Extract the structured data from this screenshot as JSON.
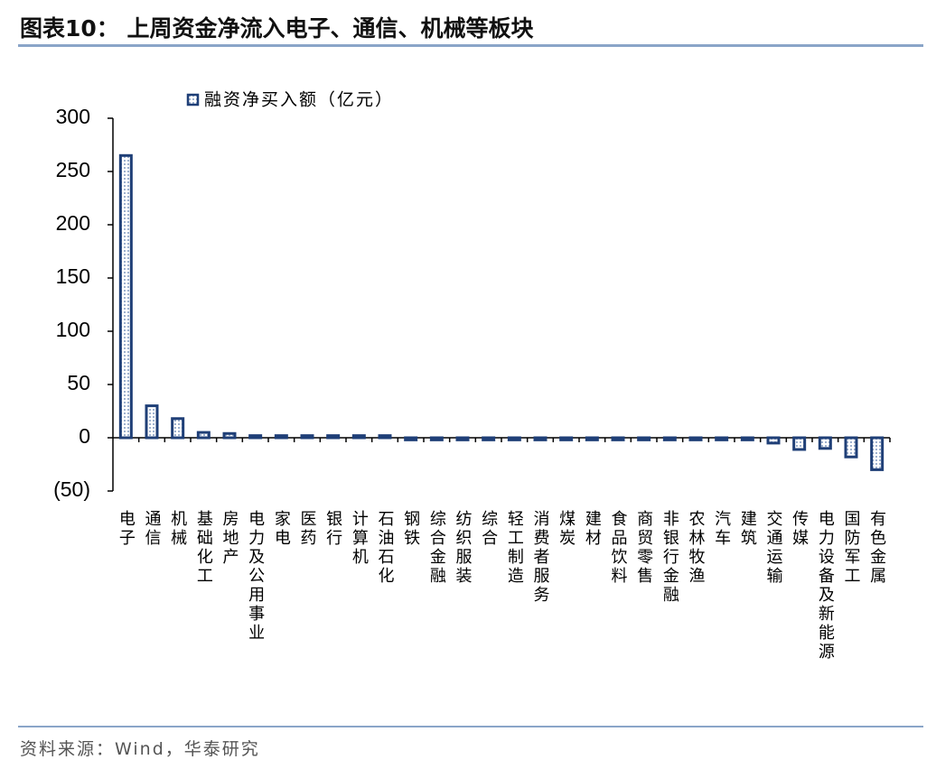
{
  "header": {
    "title": "图表10： 上周资金净流入电子、通信、机械等板块"
  },
  "chart_data": {
    "type": "bar",
    "categories": [
      "电子",
      "通信",
      "机械",
      "基础化工",
      "房地产",
      "电力及公用事业",
      "家电",
      "医药",
      "银行",
      "计算机",
      "石油石化",
      "钢铁",
      "综合金融",
      "纺织服装",
      "综合",
      "轻工制造",
      "消费者服务",
      "煤炭",
      "建材",
      "食品饮料",
      "商贸零售",
      "非银行金融",
      "农林牧渔",
      "汽车",
      "建筑",
      "交通运输",
      "传媒",
      "电力设备及新能源",
      "国防军工",
      "有色金属"
    ],
    "series": [
      {
        "name": "融资净买入额（亿元）",
        "color": "#1f3f77",
        "values": [
          265,
          30,
          18,
          5,
          4,
          2,
          2,
          2,
          2,
          2,
          2,
          -2,
          -2,
          -2,
          -2,
          -2,
          -2,
          -2,
          -2,
          -2,
          -2,
          -2,
          -2,
          -2,
          -2,
          -5,
          -11,
          -10,
          -18,
          -30
        ]
      }
    ],
    "ylim": [
      -50,
      300
    ],
    "yticks": [
      {
        "value": -50,
        "label": "(50)"
      },
      0,
      50,
      100,
      150,
      200,
      250,
      300
    ]
  },
  "footer": {
    "source": "资料来源：Wind，华泰研究"
  }
}
